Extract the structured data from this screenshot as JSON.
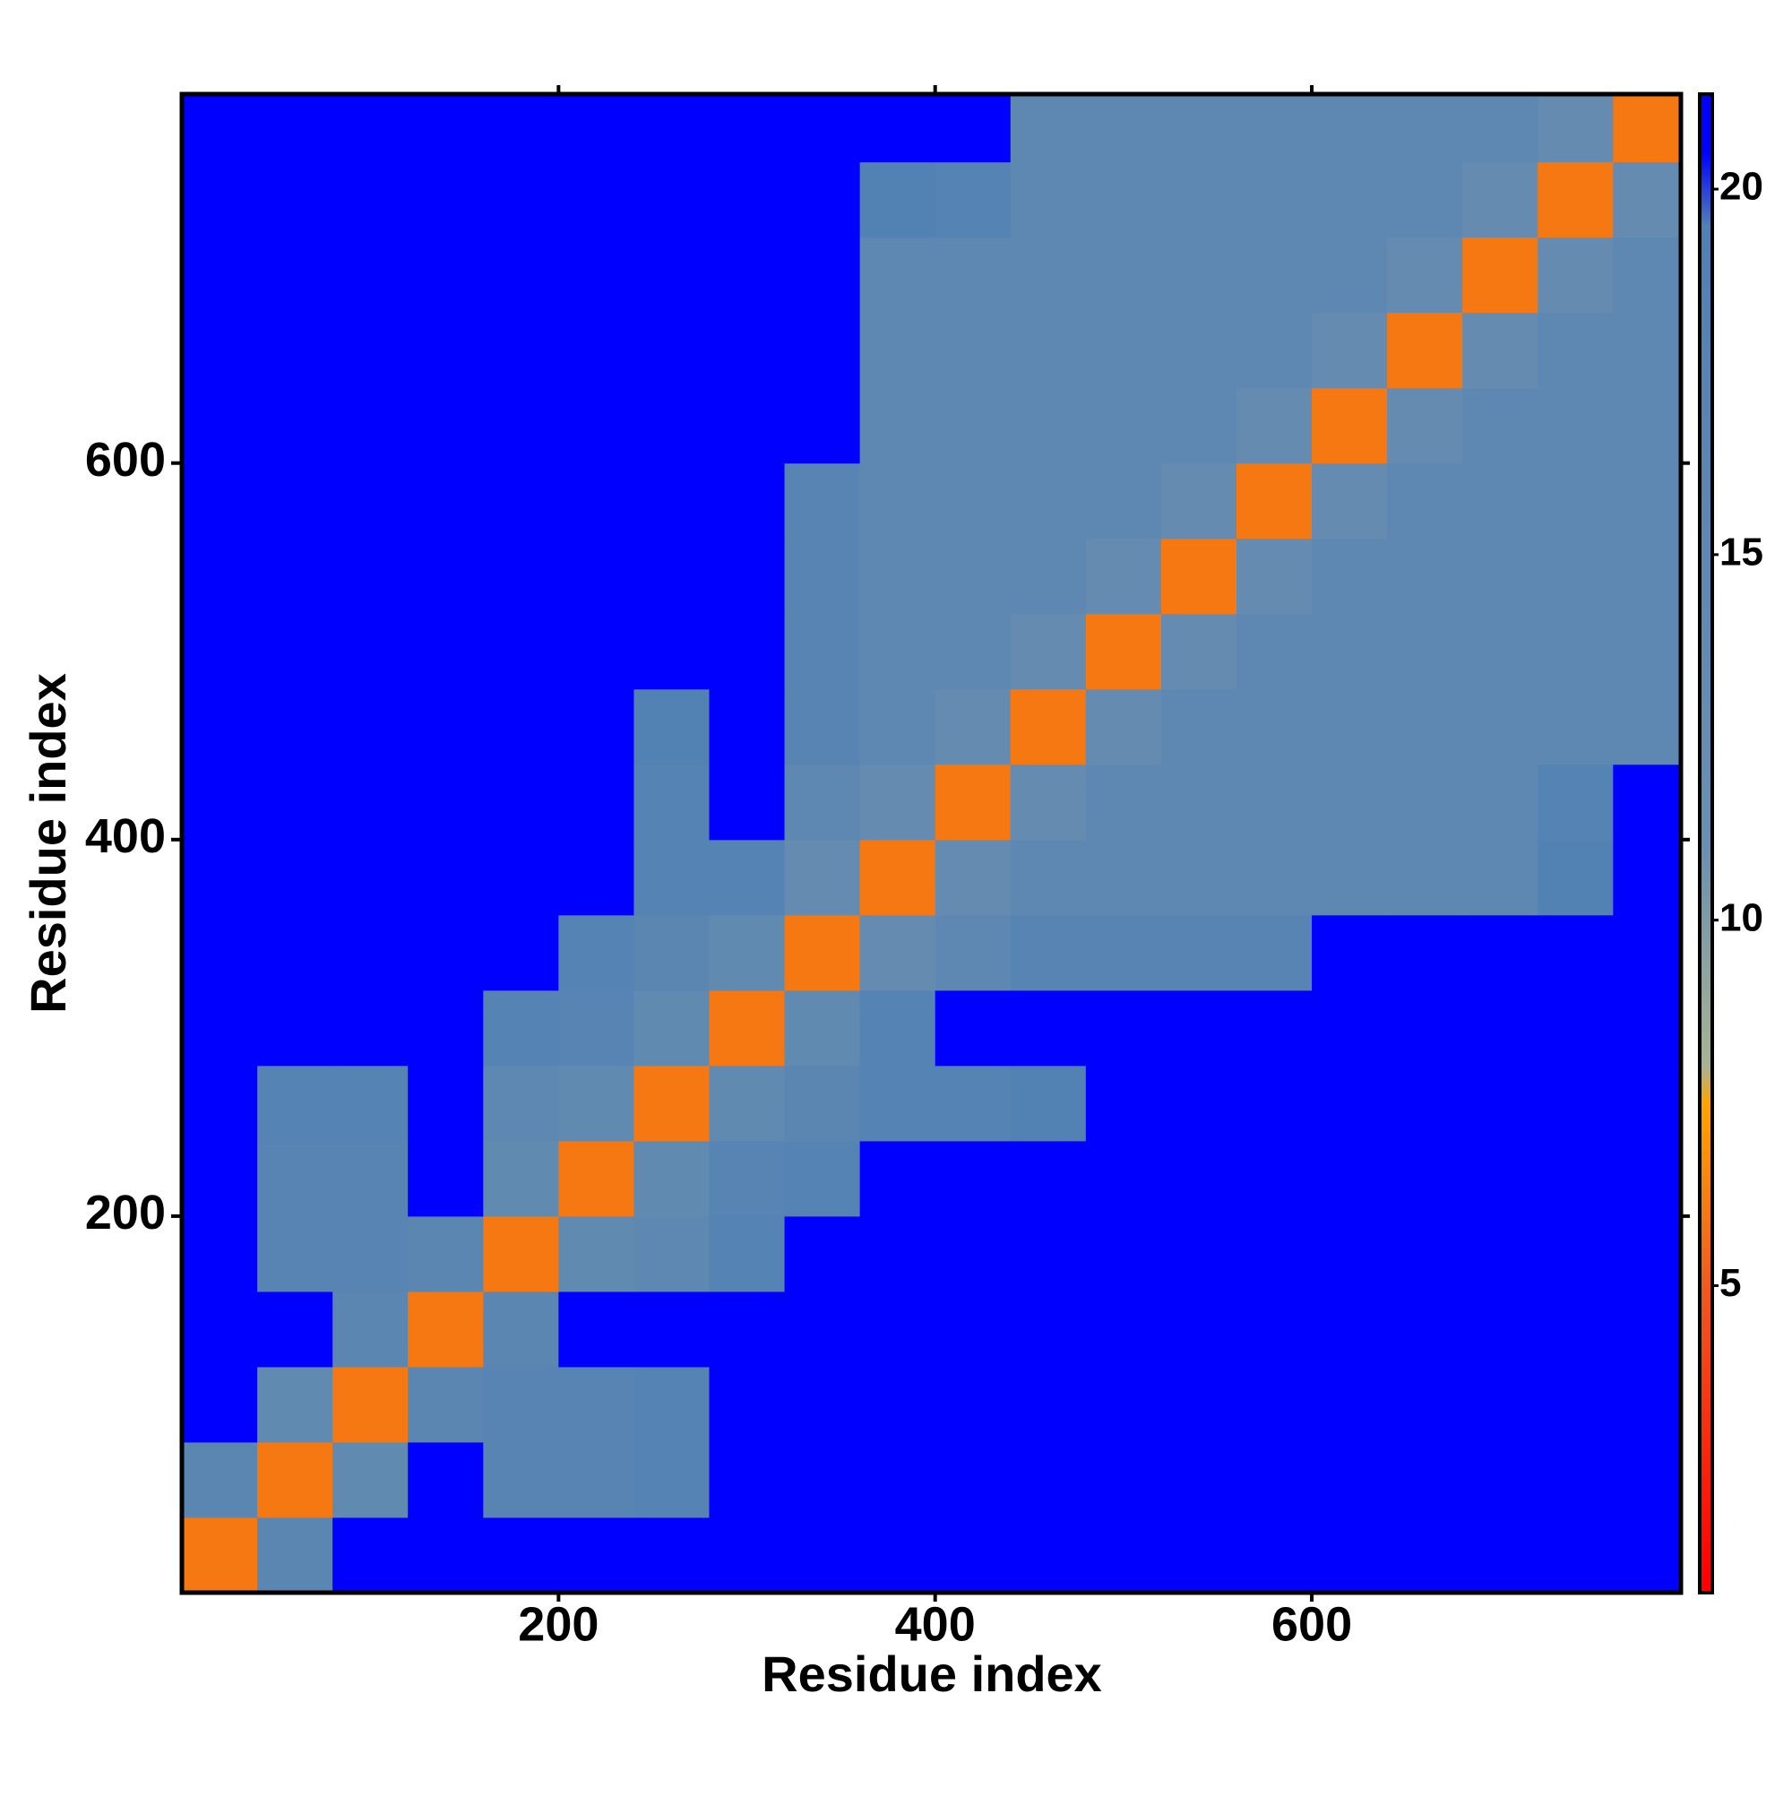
{
  "chart_data": {
    "type": "heatmap",
    "xlabel": "Residue index",
    "ylabel": "Residue index",
    "bins": [
      0,
      40,
      80,
      120,
      160,
      200,
      240,
      280,
      320,
      360,
      400,
      440,
      480,
      520,
      560,
      600,
      640,
      680,
      720,
      760,
      796
    ],
    "values": [
      [
        6,
        16,
        21,
        21,
        21,
        21,
        21,
        21,
        21,
        21,
        21,
        21,
        21,
        21,
        21,
        21,
        21,
        21,
        21,
        21
      ],
      [
        16,
        6,
        14,
        21,
        17,
        17,
        18,
        21,
        21,
        21,
        21,
        21,
        21,
        21,
        21,
        21,
        21,
        21,
        21,
        21
      ],
      [
        21,
        14,
        6,
        16,
        17,
        17,
        18,
        21,
        21,
        21,
        21,
        21,
        21,
        21,
        21,
        21,
        21,
        21,
        21,
        21
      ],
      [
        21,
        21,
        16,
        6,
        16,
        21,
        21,
        21,
        21,
        21,
        21,
        21,
        21,
        21,
        21,
        21,
        21,
        21,
        21,
        21
      ],
      [
        21,
        17,
        17,
        16,
        6,
        14,
        15,
        18,
        21,
        21,
        21,
        21,
        21,
        21,
        21,
        21,
        21,
        21,
        21,
        21
      ],
      [
        21,
        17,
        17,
        21,
        14,
        6,
        14,
        17,
        18,
        21,
        21,
        21,
        21,
        21,
        21,
        21,
        21,
        21,
        21,
        21
      ],
      [
        21,
        18,
        18,
        21,
        15,
        14,
        6,
        14,
        16,
        18,
        18,
        19,
        21,
        21,
        21,
        21,
        21,
        21,
        21,
        21
      ],
      [
        21,
        21,
        21,
        21,
        18,
        17,
        14,
        6,
        14,
        18,
        21,
        21,
        21,
        21,
        21,
        21,
        21,
        21,
        21,
        21
      ],
      [
        21,
        21,
        21,
        21,
        21,
        18,
        16,
        14,
        6,
        13,
        15,
        17,
        17,
        17,
        17,
        21,
        21,
        21,
        21,
        21
      ],
      [
        21,
        21,
        21,
        21,
        21,
        21,
        18,
        18,
        13,
        6,
        13,
        15,
        15,
        15,
        15,
        15,
        15,
        15,
        19,
        21
      ],
      [
        21,
        21,
        21,
        21,
        21,
        21,
        18,
        21,
        15,
        13,
        6,
        13,
        15,
        15,
        15,
        15,
        15,
        15,
        18,
        21
      ],
      [
        21,
        21,
        21,
        21,
        21,
        21,
        19,
        21,
        17,
        15,
        13,
        6,
        13,
        15,
        15,
        15,
        15,
        15,
        15,
        15
      ],
      [
        21,
        21,
        21,
        21,
        21,
        21,
        21,
        21,
        17,
        15,
        15,
        13,
        6,
        13,
        15,
        15,
        15,
        15,
        15,
        15
      ],
      [
        21,
        21,
        21,
        21,
        21,
        21,
        21,
        21,
        17,
        15,
        15,
        15,
        13,
        6,
        13,
        15,
        15,
        15,
        15,
        15
      ],
      [
        21,
        21,
        21,
        21,
        21,
        21,
        21,
        21,
        17,
        15,
        15,
        15,
        15,
        13,
        6,
        13,
        15,
        15,
        15,
        15
      ],
      [
        21,
        21,
        21,
        21,
        21,
        21,
        21,
        21,
        21,
        15,
        15,
        15,
        15,
        15,
        13,
        6,
        13,
        15,
        15,
        15
      ],
      [
        21,
        21,
        21,
        21,
        21,
        21,
        21,
        21,
        21,
        15,
        15,
        15,
        15,
        15,
        15,
        13,
        6,
        13,
        15,
        15
      ],
      [
        21,
        21,
        21,
        21,
        21,
        21,
        21,
        21,
        21,
        15,
        15,
        15,
        15,
        15,
        15,
        15,
        13,
        6,
        13,
        15
      ],
      [
        21,
        21,
        21,
        21,
        21,
        21,
        21,
        21,
        21,
        19,
        18,
        15,
        15,
        15,
        15,
        15,
        15,
        13,
        6,
        13
      ],
      [
        21,
        21,
        21,
        21,
        21,
        21,
        21,
        21,
        21,
        21,
        21,
        15,
        15,
        15,
        15,
        15,
        15,
        15,
        13,
        6
      ]
    ],
    "xlim": [
      0,
      796
    ],
    "ylim": [
      0,
      796
    ],
    "xticks": [
      200,
      400,
      600
    ],
    "yticks": [
      200,
      400,
      600
    ],
    "colorscale": [
      [
        1,
        "#ff0000"
      ],
      [
        5,
        "#f05a1e"
      ],
      [
        7.5,
        "#ffa500"
      ],
      [
        8,
        "#a8b394"
      ],
      [
        11,
        "#6b8fb0"
      ],
      [
        19.5,
        "#5080b4"
      ],
      [
        20.5,
        "#0000ff"
      ]
    ],
    "colorbar": {
      "lim": [
        0.8,
        21.3
      ],
      "ticks": [
        5,
        10,
        15,
        20
      ]
    }
  }
}
